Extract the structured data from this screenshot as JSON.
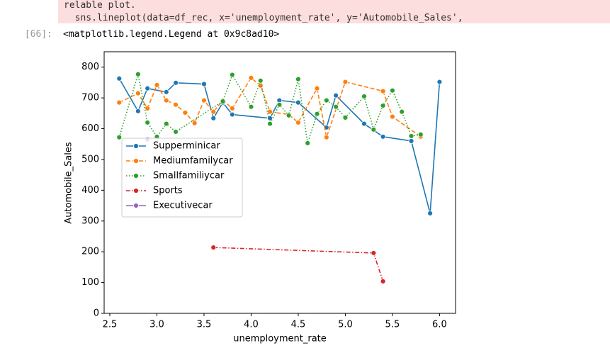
{
  "warning_text": [
    "relable plot.",
    "  sns.lineplot(data=df_rec, x='unemployment_rate', y='Automobile_Sales',"
  ],
  "output_prompt": "[66]:",
  "output_text": "<matplotlib.legend.Legend at 0x9c8ad10>",
  "chart_data": {
    "type": "line",
    "x_label": "unemployment_rate",
    "y_label": "Automobile_Sales",
    "xlim": [
      2.44,
      6.17
    ],
    "ylim": [
      0,
      850
    ],
    "xticks": [
      2.5,
      {
        "value": 3,
        "label": "3.0"
      },
      3.5,
      {
        "value": 4,
        "label": "4.0"
      },
      4.5,
      {
        "value": 5,
        "label": "5.0"
      },
      5.5,
      {
        "value": 6,
        "label": "6.0"
      }
    ],
    "yticks": [
      0,
      100,
      200,
      300,
      400,
      500,
      600,
      700,
      800
    ],
    "legend_position": "center left",
    "grid": false,
    "series": [
      {
        "name": "Supperminicar",
        "color": "#1f77b4",
        "linestyle": "solid",
        "x": [
          2.6,
          2.8,
          2.9,
          3.1,
          3.2,
          3.5,
          3.6,
          3.7,
          3.8,
          4.2,
          4.3,
          4.5,
          4.8,
          4.9,
          5.2,
          5.4,
          5.7,
          5.9,
          6.0
        ],
        "values": [
          763,
          657,
          731,
          719,
          749,
          745,
          634,
          685,
          646,
          634,
          692,
          685,
          604,
          708,
          616,
          574,
          560,
          325,
          752
        ]
      },
      {
        "name": "Mediumfamilycar",
        "color": "#ff7f0e",
        "linestyle": "dashed",
        "x": [
          2.6,
          2.8,
          2.9,
          3.0,
          3.1,
          3.2,
          3.3,
          3.4,
          3.5,
          3.6,
          3.7,
          3.8,
          4.0,
          4.1,
          4.2,
          4.4,
          4.5,
          4.7,
          4.8,
          5.0,
          5.4,
          5.5,
          5.8
        ],
        "values": [
          685,
          715,
          666,
          742,
          692,
          678,
          652,
          618,
          692,
          655,
          692,
          666,
          765,
          740,
          655,
          646,
          620,
          731,
          572,
          752,
          722,
          639,
          574
        ]
      },
      {
        "name": "Smallfamiliycar",
        "color": "#2ca02c",
        "linestyle": "dotted",
        "x": [
          2.6,
          2.8,
          2.9,
          3.0,
          3.1,
          3.2,
          3.7,
          3.8,
          4.0,
          4.1,
          4.2,
          4.3,
          4.4,
          4.5,
          4.6,
          4.7,
          4.8,
          4.9,
          5.0,
          5.2,
          5.3,
          5.4,
          5.5,
          5.6,
          5.7,
          5.8
        ],
        "values": [
          572,
          777,
          620,
          574,
          616,
          590,
          689,
          775,
          671,
          756,
          616,
          678,
          643,
          761,
          553,
          648,
          692,
          671,
          636,
          705,
          597,
          675,
          724,
          655,
          576,
          581
        ]
      },
      {
        "name": "Sports",
        "color": "#d62728",
        "linestyle": "dashdot",
        "x": [
          3.6,
          5.3,
          5.4
        ],
        "values": [
          214,
          196,
          104
        ]
      },
      {
        "name": "Executivecar",
        "color": "#9467bd",
        "linestyle": "solid",
        "x": [
          2.9
        ],
        "values": [
          565
        ]
      }
    ]
  }
}
